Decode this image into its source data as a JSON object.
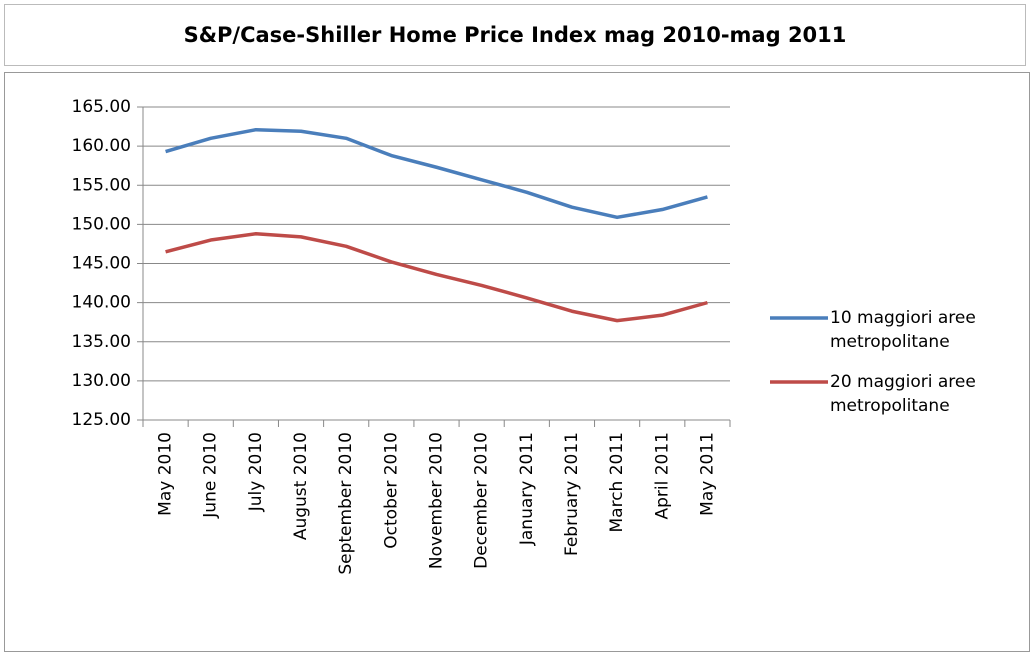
{
  "chart_data": {
    "type": "line",
    "title": "S&P/Case-Shiller Home Price Index mag 2010-mag 2011",
    "categories": [
      "May 2010",
      "June 2010",
      "July 2010",
      "August 2010",
      "September 2010",
      "October 2010",
      "November 2010",
      "December 2010",
      "January 2011",
      "February 2011",
      "March 2011",
      "April 2011",
      "May 2011"
    ],
    "series": [
      {
        "name": "10 maggiori aree metropolitane",
        "color": "#4a7ebb",
        "values": [
          159.3,
          161.0,
          162.1,
          161.9,
          161.0,
          158.8,
          157.3,
          155.7,
          154.1,
          152.2,
          150.9,
          151.9,
          153.5
        ]
      },
      {
        "name": "20 maggiori aree metropolitane",
        "color": "#be4b48",
        "values": [
          146.5,
          148.0,
          148.8,
          148.4,
          147.2,
          145.2,
          143.6,
          142.2,
          140.6,
          138.9,
          137.7,
          138.4,
          140.0
        ]
      }
    ],
    "ylim": [
      125,
      165
    ],
    "yticks": [
      {
        "value": 125,
        "label": "125.00"
      },
      {
        "value": 130,
        "label": "130.00"
      },
      {
        "value": 135,
        "label": "135.00"
      },
      {
        "value": 140,
        "label": "140.00"
      },
      {
        "value": 145,
        "label": "145.00"
      },
      {
        "value": 150,
        "label": "150.00"
      },
      {
        "value": 155,
        "label": "155.00"
      },
      {
        "value": 160,
        "label": "160.00"
      },
      {
        "value": 165,
        "label": "165.00"
      }
    ],
    "grid": true,
    "legend": "right"
  }
}
